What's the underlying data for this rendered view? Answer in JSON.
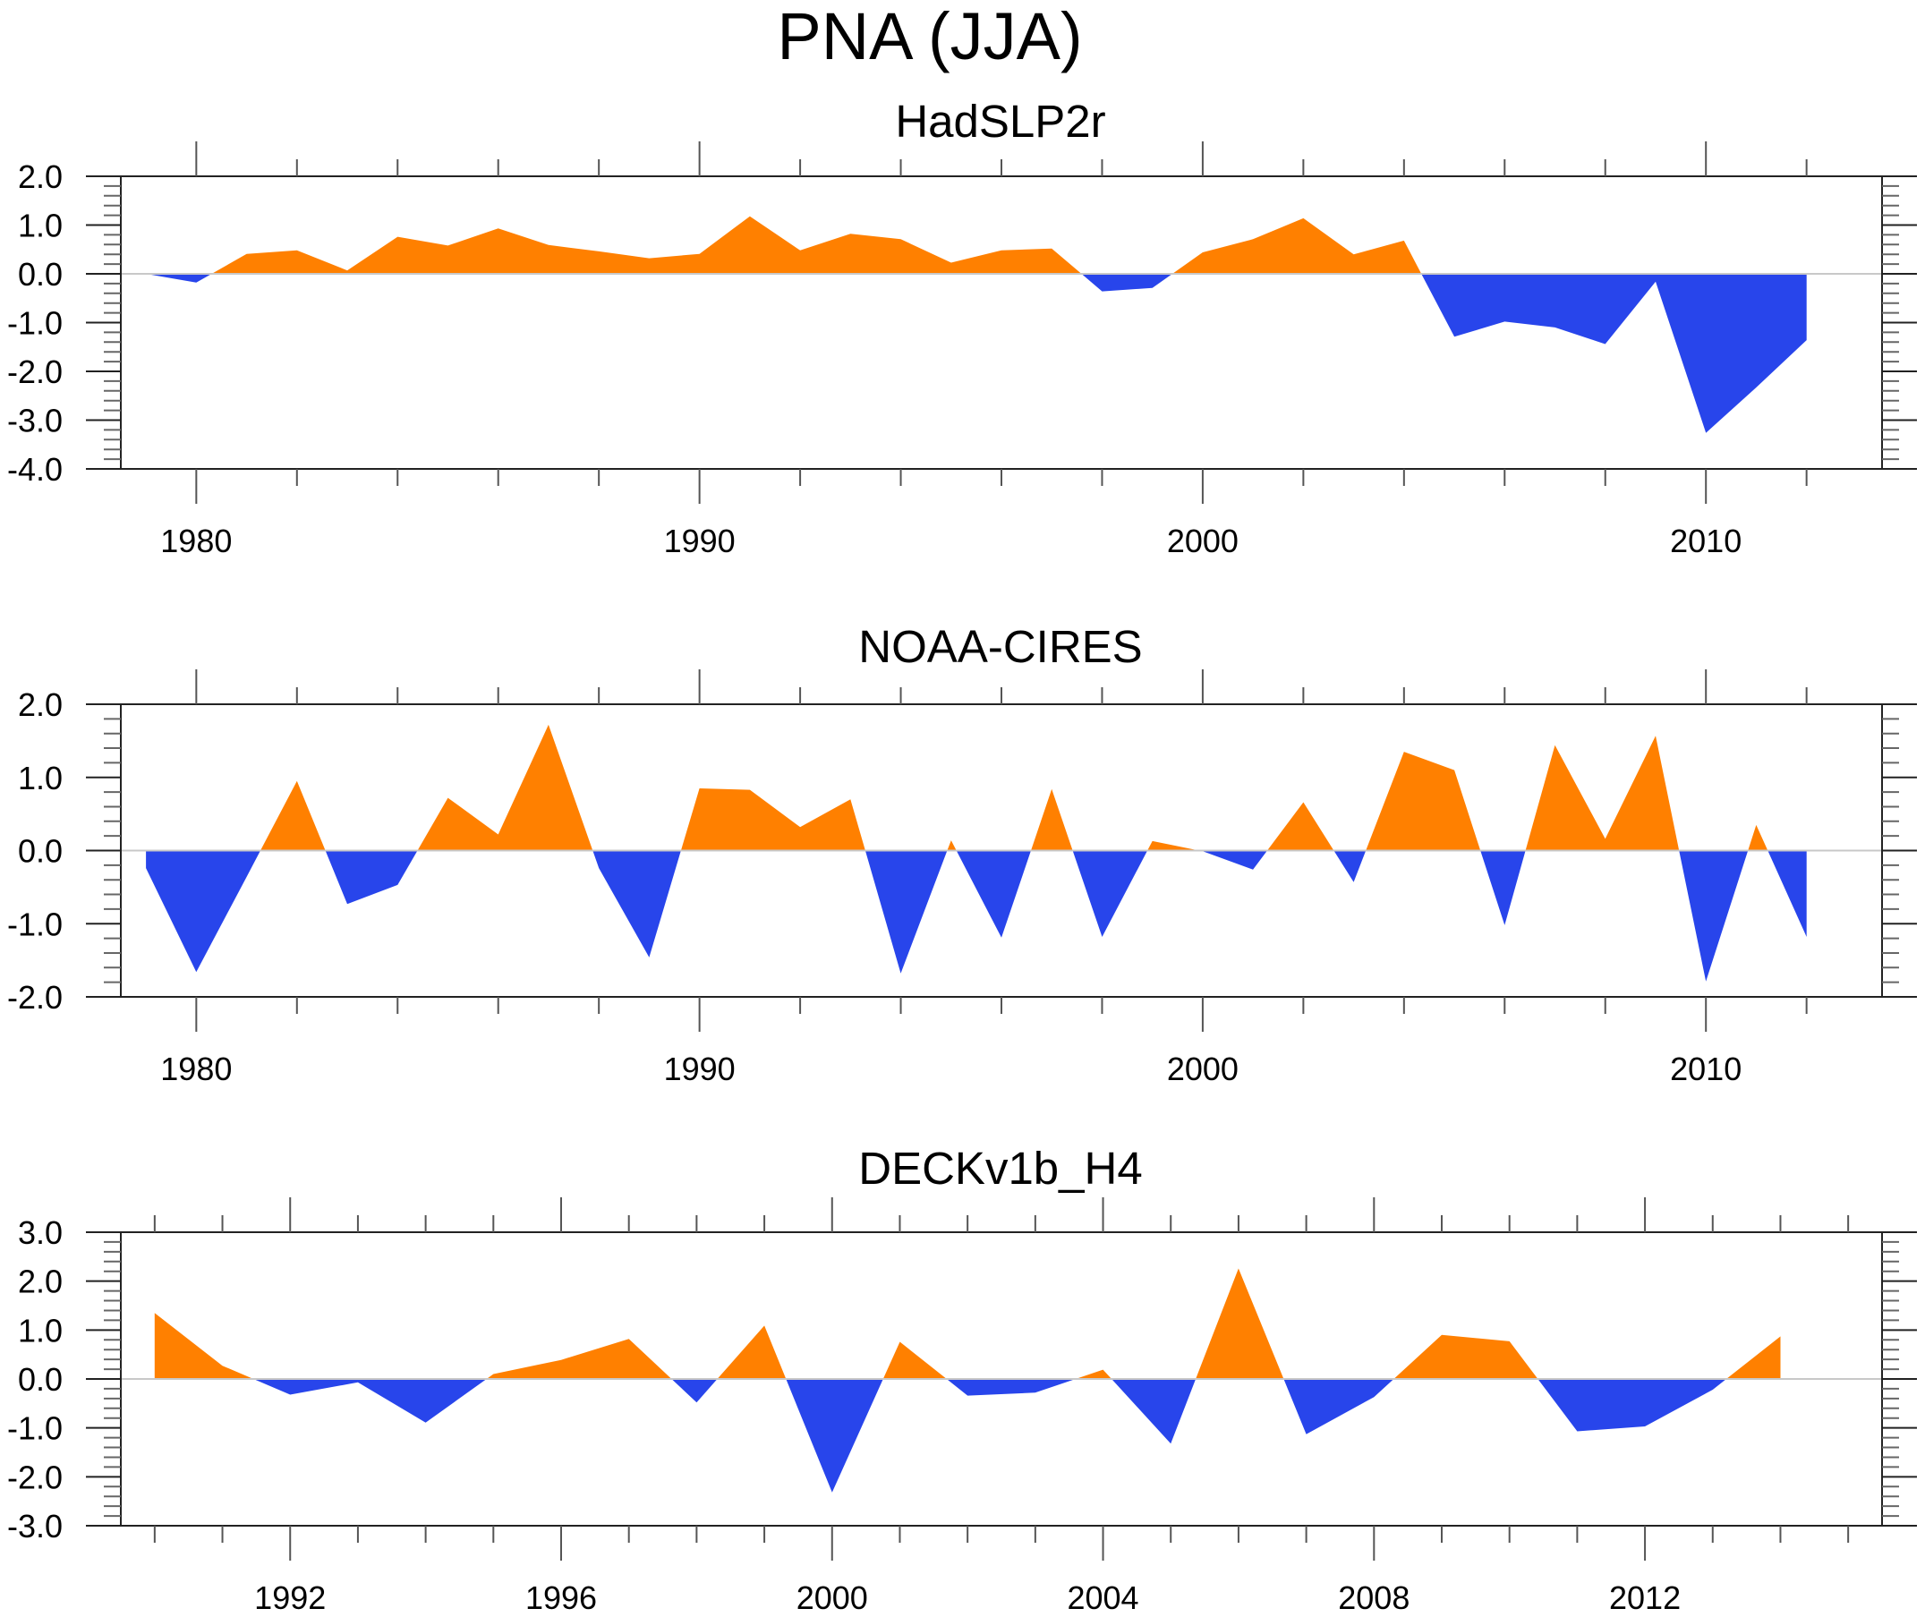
{
  "figure": {
    "title": "PNA (JJA)"
  },
  "colors": {
    "positive": "#ff8000",
    "negative": "#2845eb",
    "axis": "#222222",
    "zero_line": "#c8c8c8"
  },
  "chart_data": [
    {
      "type": "area",
      "title": "HadSLP2r",
      "xlabel": "",
      "ylabel": "",
      "xlim": [
        1978.5,
        2013.5
      ],
      "ylim": [
        -4.0,
        2.0
      ],
      "yticks": [
        "2.0",
        "1.0",
        "0.0",
        "-1.0",
        "-2.0",
        "-3.0",
        "-4.0"
      ],
      "ytick_values": [
        2,
        1,
        0,
        -1,
        -2,
        -3,
        -4
      ],
      "xticks": [
        "1980",
        "1990",
        "2000",
        "2010"
      ],
      "xtick_values": [
        1980,
        1990,
        2000,
        2010
      ],
      "x_minor_step": 2,
      "y_minor_step": 0.2,
      "grid": false,
      "fill_above_zero": "positive",
      "fill_below_zero": "negative",
      "x": [
        1979,
        1980,
        1981,
        1982,
        1983,
        1984,
        1985,
        1986,
        1987,
        1988,
        1989,
        1990,
        1991,
        1992,
        1993,
        1994,
        1995,
        1996,
        1997,
        1998,
        1999,
        2000,
        2001,
        2002,
        2003,
        2004,
        2005,
        2006,
        2007,
        2008,
        2009,
        2010,
        2011,
        2012
      ],
      "values": [
        0.0,
        -0.18,
        0.41,
        0.48,
        0.07,
        0.76,
        0.58,
        0.93,
        0.59,
        0.46,
        0.32,
        0.41,
        1.18,
        0.48,
        0.82,
        0.71,
        0.23,
        0.48,
        0.52,
        -0.36,
        -0.29,
        0.44,
        0.71,
        1.14,
        0.4,
        0.68,
        -1.29,
        -0.98,
        -1.1,
        -1.44,
        -0.16,
        -3.26,
        -2.33,
        -1.36
      ]
    },
    {
      "type": "area",
      "title": "NOAA-CIRES",
      "xlabel": "",
      "ylabel": "",
      "xlim": [
        1978.5,
        2013.5
      ],
      "ylim": [
        -2.0,
        2.0
      ],
      "yticks": [
        "2.0",
        "1.0",
        "0.0",
        "-1.0",
        "-2.0"
      ],
      "ytick_values": [
        2,
        1,
        0,
        -1,
        -2
      ],
      "xticks": [
        "1980",
        "1990",
        "2000",
        "2010"
      ],
      "xtick_values": [
        1980,
        1990,
        2000,
        2010
      ],
      "x_minor_step": 2,
      "y_minor_step": 0.2,
      "grid": false,
      "fill_above_zero": "positive",
      "fill_below_zero": "negative",
      "x": [
        1979,
        1980,
        1981,
        1982,
        1983,
        1984,
        1985,
        1986,
        1987,
        1988,
        1989,
        1990,
        1991,
        1992,
        1993,
        1994,
        1995,
        1996,
        1997,
        1998,
        1999,
        2000,
        2001,
        2002,
        2003,
        2004,
        2005,
        2006,
        2007,
        2008,
        2009,
        2010,
        2011,
        2012
      ],
      "values": [
        -0.24,
        -1.66,
        -0.36,
        0.95,
        -0.73,
        -0.47,
        0.72,
        0.22,
        1.72,
        -0.24,
        -1.46,
        0.85,
        0.83,
        0.32,
        0.7,
        -1.68,
        0.14,
        -1.19,
        0.84,
        -1.18,
        0.13,
        -0.01,
        -0.26,
        0.66,
        -0.43,
        1.35,
        1.1,
        -1.02,
        1.44,
        0.16,
        1.57,
        -1.79,
        0.35,
        -1.18
      ]
    },
    {
      "type": "area",
      "title": "DECKv1b_H4",
      "xlabel": "",
      "ylabel": "",
      "xlim": [
        1989.5,
        2015.5
      ],
      "ylim": [
        -3.0,
        3.0
      ],
      "yticks": [
        "3.0",
        "2.0",
        "1.0",
        "0.0",
        "-1.0",
        "-2.0",
        "-3.0"
      ],
      "ytick_values": [
        3,
        2,
        1,
        0,
        -1,
        -2,
        -3
      ],
      "xticks": [
        "1992",
        "1996",
        "2000",
        "2004",
        "2008",
        "2012"
      ],
      "xtick_values": [
        1992,
        1996,
        2000,
        2004,
        2008,
        2012
      ],
      "x_minor_step": 1,
      "y_minor_step": 0.2,
      "grid": false,
      "fill_above_zero": "positive",
      "fill_below_zero": "negative",
      "x": [
        1990,
        1991,
        1992,
        1993,
        1994,
        1995,
        1996,
        1997,
        1998,
        1999,
        2000,
        2001,
        2002,
        2003,
        2004,
        2005,
        2006,
        2007,
        2008,
        2009,
        2010,
        2011,
        2012,
        2013,
        2014
      ],
      "values": [
        1.35,
        0.27,
        -0.32,
        -0.07,
        -0.89,
        0.1,
        0.39,
        0.82,
        -0.48,
        1.09,
        -2.32,
        0.76,
        -0.34,
        -0.28,
        0.19,
        -1.32,
        2.26,
        -1.13,
        -0.37,
        0.9,
        0.77,
        -1.07,
        -0.97,
        -0.22,
        0.87
      ]
    }
  ]
}
